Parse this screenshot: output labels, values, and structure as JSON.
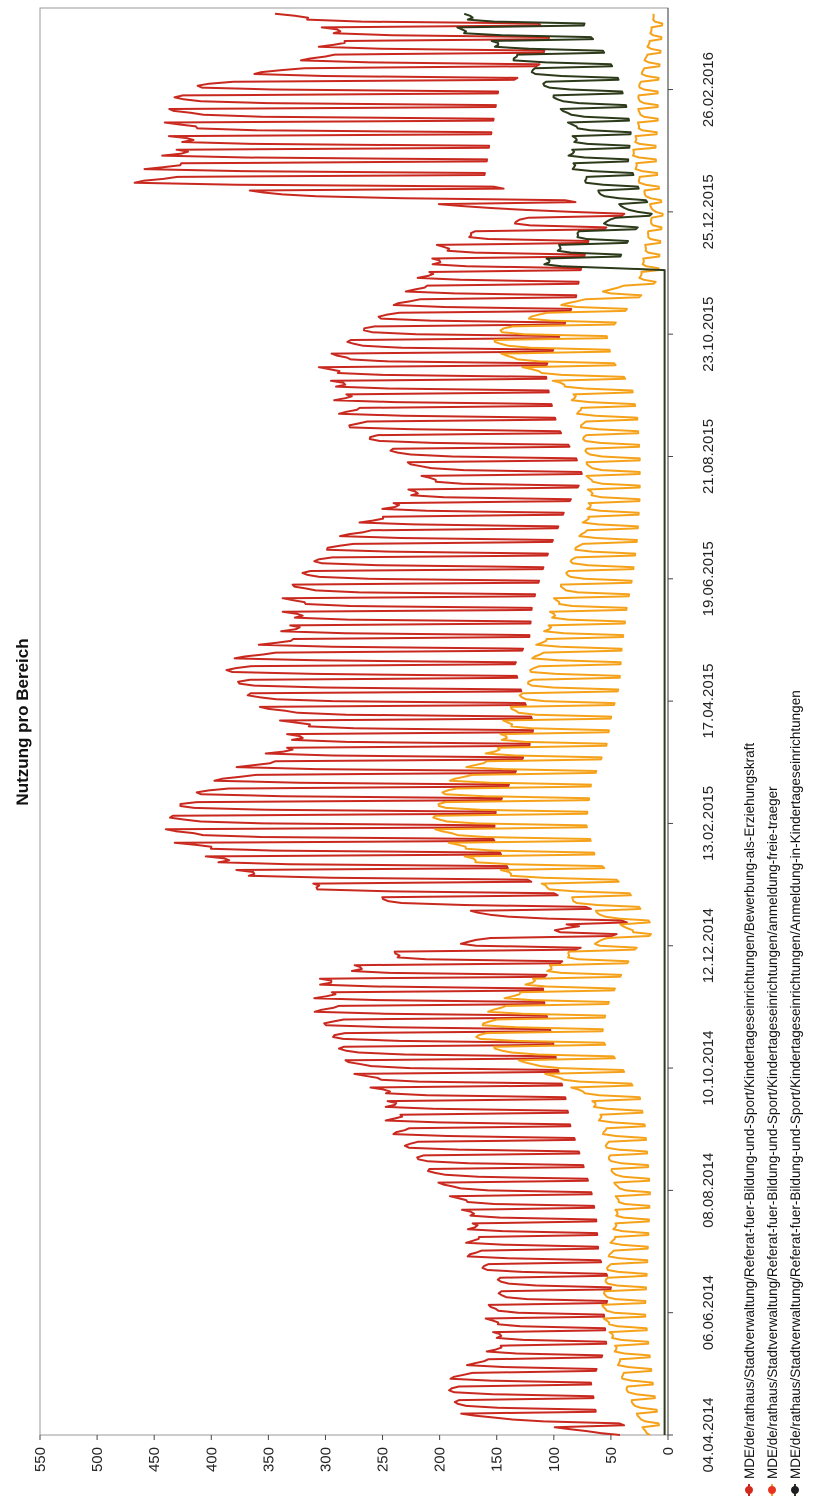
{
  "chart_data": {
    "type": "line",
    "title": "Nutzung pro Bereich",
    "xlabel": "",
    "ylabel": "",
    "ylim": [
      0,
      550
    ],
    "y_ticks": [
      0,
      50,
      100,
      150,
      200,
      250,
      300,
      350,
      400,
      450,
      500,
      550
    ],
    "x_range": [
      "2014-04-04",
      "2016-04-08"
    ],
    "x_ticks": [
      "04.04.2014",
      "06.06.2014",
      "08.08.2014",
      "10.10.2014",
      "12.12.2014",
      "13.02.2015",
      "17.04.2015",
      "19.06.2015",
      "21.08.2015",
      "23.10.2015",
      "25.12.2015",
      "26.02.2016"
    ],
    "grid": false,
    "legend_position": "bottom",
    "orientation": "rotated-90-clockwise",
    "series": [
      {
        "name": "MDE/de/rathaus/Stadtverwaltung/Referat-fuer-Bildung-und-Sport/Kindertageseinrichtungen/Bewerbung-als-Erziehungskraft",
        "color": "#c8281e",
        "marker": "#d42a1e",
        "points": [
          [
            "2014-04-04",
            40
          ],
          [
            "2014-04-15",
            140
          ],
          [
            "2014-05-01",
            150
          ],
          [
            "2014-05-20",
            120
          ],
          [
            "2014-06-06",
            125
          ],
          [
            "2014-06-20",
            110
          ],
          [
            "2014-07-05",
            135
          ],
          [
            "2014-07-25",
            140
          ],
          [
            "2014-08-08",
            150
          ],
          [
            "2014-08-25",
            170
          ],
          [
            "2014-09-10",
            190
          ],
          [
            "2014-09-25",
            200
          ],
          [
            "2014-10-10",
            215
          ],
          [
            "2014-10-25",
            225
          ],
          [
            "2014-11-10",
            240
          ],
          [
            "2014-11-25",
            245
          ],
          [
            "2014-12-10",
            180
          ],
          [
            "2014-12-22",
            60
          ],
          [
            "2015-01-05",
            200
          ],
          [
            "2015-01-20",
            310
          ],
          [
            "2015-02-05",
            340
          ],
          [
            "2015-02-20",
            335
          ],
          [
            "2015-03-10",
            300
          ],
          [
            "2015-03-25",
            270
          ],
          [
            "2015-04-05",
            260
          ],
          [
            "2015-04-17",
            280
          ],
          [
            "2015-05-05",
            300
          ],
          [
            "2015-05-20",
            270
          ],
          [
            "2015-06-05",
            265
          ],
          [
            "2015-06-19",
            250
          ],
          [
            "2015-07-05",
            230
          ],
          [
            "2015-07-25",
            200
          ],
          [
            "2015-08-10",
            165
          ],
          [
            "2015-08-21",
            180
          ],
          [
            "2015-09-05",
            215
          ],
          [
            "2015-09-20",
            230
          ],
          [
            "2015-10-05",
            240
          ],
          [
            "2015-10-23",
            210
          ],
          [
            "2015-11-10",
            180
          ],
          [
            "2015-11-25",
            170
          ],
          [
            "2015-12-10",
            155
          ],
          [
            "2015-12-25",
            80
          ],
          [
            "2016-01-08",
            360
          ],
          [
            "2016-01-25",
            350
          ],
          [
            "2016-02-10",
            340
          ],
          [
            "2016-02-26",
            330
          ],
          [
            "2016-03-10",
            250
          ],
          [
            "2016-03-25",
            230
          ],
          [
            "2016-04-05",
            270
          ]
        ]
      },
      {
        "name": "MDE/de/rathaus/Stadtverwaltung/Referat-fuer-Bildung-und-Sport/Kindertageseinrichtungen/anmeldung-freie-traeger",
        "color": "#f5a21a",
        "marker": "#e8331f",
        "points": [
          [
            "2014-04-04",
            15
          ],
          [
            "2014-05-01",
            30
          ],
          [
            "2014-06-06",
            45
          ],
          [
            "2014-07-05",
            40
          ],
          [
            "2014-08-08",
            35
          ],
          [
            "2014-09-10",
            45
          ],
          [
            "2014-09-25",
            55
          ],
          [
            "2014-10-10",
            90
          ],
          [
            "2014-10-25",
            130
          ],
          [
            "2014-11-10",
            120
          ],
          [
            "2014-11-25",
            95
          ],
          [
            "2014-12-10",
            65
          ],
          [
            "2014-12-20",
            25
          ],
          [
            "2015-01-10",
            80
          ],
          [
            "2015-01-25",
            140
          ],
          [
            "2015-02-13",
            160
          ],
          [
            "2015-03-05",
            150
          ],
          [
            "2015-03-25",
            120
          ],
          [
            "2015-04-10",
            110
          ],
          [
            "2015-04-25",
            95
          ],
          [
            "2015-05-15",
            90
          ],
          [
            "2015-06-05",
            80
          ],
          [
            "2015-06-19",
            70
          ],
          [
            "2015-07-10",
            60
          ],
          [
            "2015-08-01",
            55
          ],
          [
            "2015-08-21",
            55
          ],
          [
            "2015-09-10",
            60
          ],
          [
            "2015-09-25",
            70
          ],
          [
            "2015-10-10",
            110
          ],
          [
            "2015-10-23",
            120
          ],
          [
            "2015-11-05",
            80
          ],
          [
            "2015-11-20",
            20
          ],
          [
            "2015-12-10",
            15
          ],
          [
            "2015-12-25",
            10
          ],
          [
            "2016-01-10",
            20
          ],
          [
            "2016-01-25",
            25
          ],
          [
            "2016-02-10",
            20
          ],
          [
            "2016-02-26",
            20
          ],
          [
            "2016-03-15",
            15
          ],
          [
            "2016-04-05",
            10
          ]
        ]
      },
      {
        "name": "MDE/de/rathaus/Stadtverwaltung/Referat-fuer-Bildung-und-Sport/Kindertageseinrichtungen/Anmeldung-in-Kindertageseinrichtungen",
        "color": "#2c3a1a",
        "marker": "#1e1e1e",
        "points": [
          [
            "2014-04-04",
            3
          ],
          [
            "2015-11-25",
            3
          ],
          [
            "2015-11-26",
            90
          ],
          [
            "2015-12-05",
            80
          ],
          [
            "2015-12-15",
            60
          ],
          [
            "2015-12-25",
            25
          ],
          [
            "2016-01-05",
            50
          ],
          [
            "2016-01-20",
            70
          ],
          [
            "2016-02-05",
            65
          ],
          [
            "2016-02-20",
            75
          ],
          [
            "2016-03-05",
            90
          ],
          [
            "2016-03-20",
            120
          ],
          [
            "2016-03-28",
            150
          ],
          [
            "2016-04-05",
            140
          ]
        ]
      }
    ]
  }
}
